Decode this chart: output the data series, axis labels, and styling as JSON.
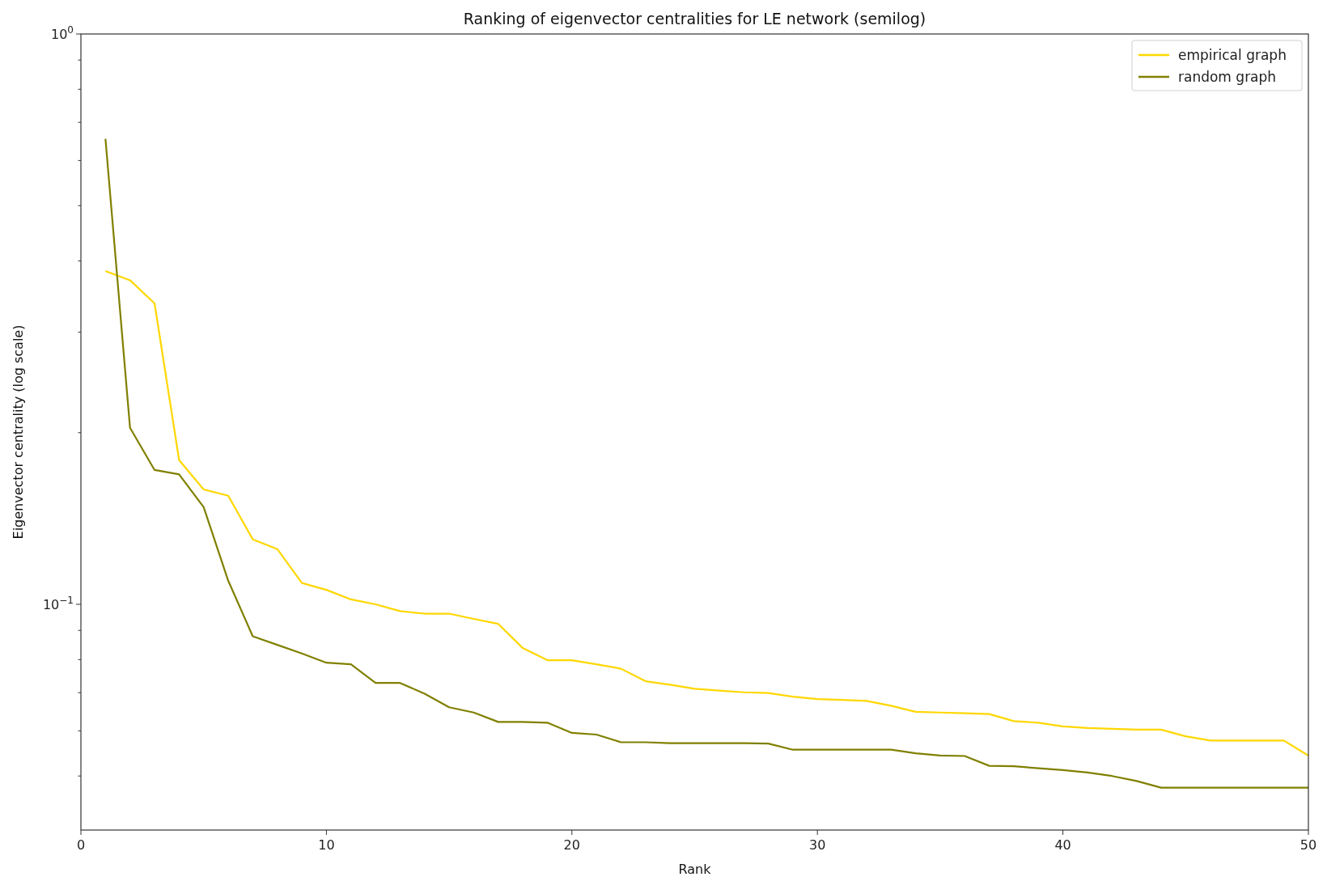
{
  "chart_data": {
    "type": "line",
    "title": "Ranking of eigenvector centralities for LE network (semilog)",
    "xlabel": "Rank",
    "ylabel": "Eigenvector centrality (log scale)",
    "x": [
      1,
      2,
      3,
      4,
      5,
      6,
      7,
      8,
      9,
      10,
      11,
      12,
      13,
      14,
      15,
      16,
      17,
      18,
      19,
      20,
      21,
      22,
      23,
      24,
      25,
      26,
      27,
      28,
      29,
      30,
      31,
      32,
      33,
      34,
      35,
      36,
      37,
      38,
      39,
      40,
      41,
      42,
      43,
      44,
      45,
      46,
      47,
      48,
      49,
      50
    ],
    "series": [
      {
        "name": "empirical graph",
        "color": "#ffd700",
        "values": [
          0.384,
          0.37,
          0.337,
          0.179,
          0.159,
          0.155,
          0.13,
          0.125,
          0.109,
          0.106,
          0.102,
          0.1,
          0.0973,
          0.0963,
          0.0963,
          0.0943,
          0.0924,
          0.0838,
          0.0798,
          0.0798,
          0.0785,
          0.0771,
          0.0733,
          0.0723,
          0.0711,
          0.0706,
          0.0701,
          0.0699,
          0.0689,
          0.0682,
          0.068,
          0.0677,
          0.0664,
          0.0648,
          0.0646,
          0.0644,
          0.0642,
          0.0624,
          0.062,
          0.0611,
          0.0607,
          0.0605,
          0.0603,
          0.0603,
          0.0587,
          0.0577,
          0.0577,
          0.0577,
          0.0577,
          0.0543
        ]
      },
      {
        "name": "random graph",
        "color": "#808000",
        "values": [
          0.655,
          0.204,
          0.172,
          0.169,
          0.148,
          0.11,
          0.0879,
          0.0849,
          0.082,
          0.079,
          0.0785,
          0.0728,
          0.0728,
          0.0697,
          0.066,
          0.0646,
          0.0622,
          0.0622,
          0.062,
          0.0595,
          0.0591,
          0.0573,
          0.0573,
          0.0571,
          0.0571,
          0.0571,
          0.0571,
          0.057,
          0.0556,
          0.0556,
          0.0556,
          0.0556,
          0.0556,
          0.0548,
          0.0543,
          0.0542,
          0.0521,
          0.052,
          0.0516,
          0.0512,
          0.0507,
          0.05,
          0.049,
          0.0477,
          0.0477,
          0.0477,
          0.0477,
          0.0477,
          0.0477,
          0.0477
        ]
      }
    ],
    "xlim": [
      0,
      50
    ],
    "xticks": [
      0,
      10,
      20,
      30,
      40,
      50
    ],
    "ylim": [
      0.0402,
      1
    ],
    "yticks": [
      {
        "value": 0.05,
        "label": null
      },
      {
        "value": 0.06,
        "label": null
      },
      {
        "value": 0.07,
        "label": null
      },
      {
        "value": 0.08,
        "label": null
      },
      {
        "value": 0.09,
        "label": null
      },
      {
        "value": 0.1,
        "label": "10$^{−1}$"
      },
      {
        "value": 0.2,
        "label": null
      },
      {
        "value": 0.3,
        "label": null
      },
      {
        "value": 0.4,
        "label": null
      },
      {
        "value": 0.5,
        "label": null
      },
      {
        "value": 0.6,
        "label": null
      },
      {
        "value": 0.7,
        "label": null
      },
      {
        "value": 0.8,
        "label": null
      },
      {
        "value": 0.9,
        "label": null
      },
      {
        "value": 1,
        "label": "10$^{0}$"
      }
    ],
    "log": "y",
    "grid": false,
    "legend": "top right",
    "marker": "none",
    "line_style": "solid"
  }
}
